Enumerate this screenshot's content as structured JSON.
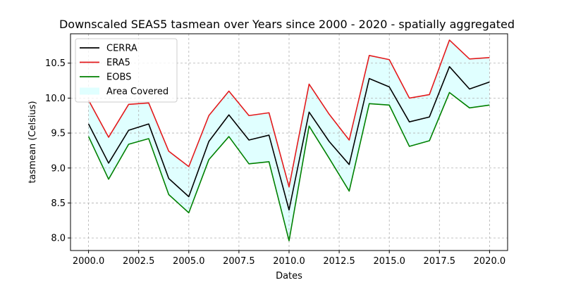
{
  "chart_data": {
    "type": "line",
    "title": "Downscaled SEAS5 tasmean over Years since 2000 - 2020 - spatially aggregated",
    "xlabel": "Dates",
    "ylabel": "tasmean (Celsius)",
    "x": [
      2000,
      2001,
      2002,
      2003,
      2004,
      2005,
      2006,
      2007,
      2008,
      2009,
      2010,
      2011,
      2012,
      2013,
      2014,
      2015,
      2016,
      2017,
      2018,
      2019,
      2020
    ],
    "xlim": [
      1999.1,
      2020.9
    ],
    "ylim": [
      7.82,
      10.92
    ],
    "x_ticks": [
      2000.0,
      2002.5,
      2005.0,
      2007.5,
      2010.0,
      2012.5,
      2015.0,
      2017.5,
      2020.0
    ],
    "x_tick_labels": [
      "2000.0",
      "2002.5",
      "2005.0",
      "2007.5",
      "2010.0",
      "2012.5",
      "2015.0",
      "2017.5",
      "2020.0"
    ],
    "y_ticks": [
      8.0,
      8.5,
      9.0,
      9.5,
      10.0,
      10.5
    ],
    "y_tick_labels": [
      "8.0",
      "8.5",
      "9.0",
      "9.5",
      "10.0",
      "10.5"
    ],
    "grid": true,
    "legend_position": "upper-left",
    "series": [
      {
        "name": "CERRA",
        "color": "#000000",
        "values": [
          9.63,
          9.07,
          9.54,
          9.63,
          8.85,
          8.59,
          9.38,
          9.76,
          9.4,
          9.47,
          8.4,
          9.8,
          9.38,
          9.05,
          10.28,
          10.16,
          9.66,
          9.73,
          10.45,
          10.13,
          10.23
        ]
      },
      {
        "name": "ERA5",
        "color": "#e31a1c",
        "values": [
          9.97,
          9.44,
          9.91,
          9.93,
          9.24,
          9.02,
          9.75,
          10.1,
          9.75,
          9.79,
          8.73,
          10.2,
          9.77,
          9.4,
          10.61,
          10.55,
          10.0,
          10.05,
          10.83,
          10.56,
          10.58
        ]
      },
      {
        "name": "EOBS",
        "color": "#008000",
        "values": [
          9.45,
          8.84,
          9.34,
          9.42,
          8.62,
          8.36,
          9.12,
          9.45,
          9.06,
          9.09,
          7.96,
          9.6,
          9.14,
          8.67,
          9.92,
          9.9,
          9.31,
          9.39,
          10.08,
          9.86,
          9.9
        ]
      }
    ],
    "area": {
      "name": "Area Covered",
      "color": "#e0ffff",
      "between": [
        "EOBS",
        "ERA5"
      ]
    }
  }
}
